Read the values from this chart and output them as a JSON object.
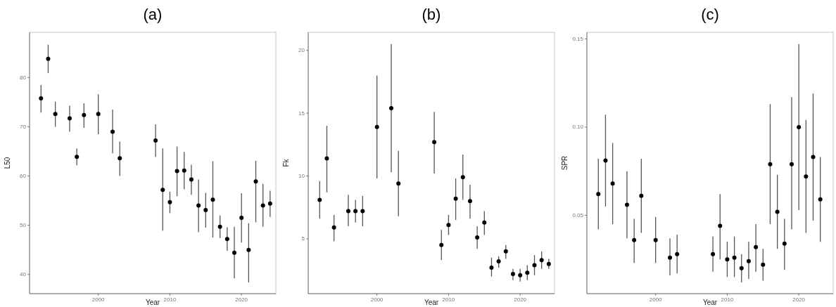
{
  "chart_data": [
    {
      "type": "scatter",
      "title": "(a)",
      "xlabel": "Year",
      "ylabel": "L50",
      "marker": "circle",
      "xlim": [
        1990.4,
        2024.8
      ],
      "xticks": [
        2000,
        2010,
        2020
      ],
      "ylim": [
        36.1,
        89.2
      ],
      "yticks": [
        40,
        50,
        60,
        70,
        80
      ],
      "x": [
        1992,
        1993,
        1994,
        1996,
        1997,
        1998,
        2000,
        2002,
        2003,
        2008,
        2009,
        2010,
        2011,
        2012,
        2013,
        2014,
        2015,
        2016,
        2017,
        2018,
        2019,
        2020,
        2021,
        2022,
        2023,
        2024
      ],
      "series": [
        {
          "color": "#000000",
          "values": [
            75.8,
            83.8,
            72.6,
            71.7,
            63.9,
            72.4,
            72.6,
            69.0,
            63.6,
            67.2,
            57.2,
            54.7,
            61.0,
            61.1,
            59.3,
            54.0,
            53.1,
            55.2,
            49.7,
            47.2,
            44.4,
            51.5,
            45.0,
            58.9,
            54.0,
            54.4
          ],
          "errors": [
            [
              72.9,
              78.5
            ],
            [
              80.9,
              86.7
            ],
            [
              70.0,
              75.1
            ],
            [
              69.0,
              74.3
            ],
            [
              62.2,
              65.6
            ],
            [
              69.8,
              74.8
            ],
            [
              68.5,
              76.6
            ],
            [
              64.6,
              73.5
            ],
            [
              60.0,
              67.0
            ],
            [
              63.9,
              70.5
            ],
            [
              48.9,
              65.6
            ],
            [
              52.5,
              56.8
            ],
            [
              55.9,
              66.0
            ],
            [
              57.3,
              64.9
            ],
            [
              56.2,
              62.3
            ],
            [
              48.6,
              59.3
            ],
            [
              49.5,
              56.6
            ],
            [
              47.5,
              63.0
            ],
            [
              47.4,
              52.0
            ],
            [
              44.8,
              49.6
            ],
            [
              39.2,
              49.7
            ],
            [
              46.5,
              56.5
            ],
            [
              38.4,
              50.4
            ],
            [
              50.6,
              63.1
            ],
            [
              49.7,
              58.4
            ],
            [
              51.7,
              57.0
            ]
          ]
        }
      ]
    },
    {
      "type": "scatter",
      "title": "(b)",
      "xlabel": "Year",
      "ylabel": "Fk",
      "marker": "circle",
      "xlim": [
        1990.4,
        2024.8
      ],
      "xticks": [
        2000,
        2010,
        2020
      ],
      "ylim": [
        0.63,
        21.44
      ],
      "yticks": [
        5,
        10,
        15,
        20
      ],
      "x": [
        1992,
        1993,
        1994,
        1996,
        1997,
        1998,
        2000,
        2002,
        2003,
        2008,
        2009,
        2010,
        2011,
        2012,
        2013,
        2014,
        2015,
        2016,
        2017,
        2018,
        2019,
        2020,
        2021,
        2022,
        2023,
        2024
      ],
      "series": [
        {
          "color": "#000000",
          "values": [
            8.1,
            11.4,
            5.9,
            7.2,
            7.2,
            7.2,
            13.9,
            15.4,
            9.4,
            12.7,
            4.5,
            6.1,
            8.2,
            9.9,
            8.0,
            5.1,
            6.3,
            2.7,
            3.2,
            4.0,
            2.2,
            2.1,
            2.3,
            2.9,
            3.3,
            3.0
          ],
          "errors": [
            [
              6.6,
              9.6
            ],
            [
              8.7,
              14.0
            ],
            [
              4.8,
              6.9
            ],
            [
              6.0,
              8.5
            ],
            [
              6.3,
              8.1
            ],
            [
              6.0,
              8.4
            ],
            [
              9.8,
              18.0
            ],
            [
              10.3,
              20.5
            ],
            [
              6.8,
              12.0
            ],
            [
              10.2,
              15.1
            ],
            [
              3.3,
              5.7
            ],
            [
              5.3,
              6.9
            ],
            [
              6.5,
              9.8
            ],
            [
              8.1,
              11.7
            ],
            [
              6.6,
              9.3
            ],
            [
              4.2,
              6.0
            ],
            [
              5.3,
              7.2
            ],
            [
              2.0,
              3.5
            ],
            [
              2.7,
              3.6
            ],
            [
              3.4,
              4.5
            ],
            [
              1.7,
              2.6
            ],
            [
              1.6,
              2.6
            ],
            [
              1.7,
              2.9
            ],
            [
              2.1,
              3.7
            ],
            [
              2.6,
              4.0
            ],
            [
              2.6,
              3.4
            ]
          ]
        }
      ]
    },
    {
      "type": "scatter",
      "title": "(c)",
      "xlabel": "Year",
      "ylabel": "SPR",
      "marker": "circle",
      "xlim": [
        1990.4,
        2024.8
      ],
      "xticks": [
        2000,
        2010,
        2020
      ],
      "ylim": [
        0.0056,
        0.1537
      ],
      "yticks": [
        {
          "value": 0.05,
          "label": "0.05"
        },
        {
          "value": 0.1,
          "label": "0.10"
        },
        {
          "value": 0.15,
          "label": "0.15"
        }
      ],
      "x": [
        1992,
        1993,
        1994,
        1996,
        1997,
        1998,
        2000,
        2002,
        2003,
        2008,
        2009,
        2010,
        2011,
        2012,
        2013,
        2014,
        2015,
        2016,
        2017,
        2018,
        2019,
        2020,
        2021,
        2022,
        2023
      ],
      "series": [
        {
          "color": "#000000",
          "values": [
            0.062,
            0.081,
            0.068,
            0.056,
            0.036,
            0.061,
            0.036,
            0.026,
            0.028,
            0.028,
            0.044,
            0.025,
            0.026,
            0.02,
            0.024,
            0.032,
            0.022,
            0.079,
            0.052,
            0.034,
            0.079,
            0.1,
            0.072,
            0.083,
            0.059
          ],
          "errors": [
            [
              0.042,
              0.082
            ],
            [
              0.055,
              0.107
            ],
            [
              0.045,
              0.091
            ],
            [
              0.037,
              0.075
            ],
            [
              0.023,
              0.048
            ],
            [
              0.04,
              0.082
            ],
            [
              0.023,
              0.049
            ],
            [
              0.016,
              0.037
            ],
            [
              0.017,
              0.039
            ],
            [
              0.018,
              0.038
            ],
            [
              0.025,
              0.062
            ],
            [
              0.015,
              0.035
            ],
            [
              0.015,
              0.038
            ],
            [
              0.012,
              0.028
            ],
            [
              0.014,
              0.035
            ],
            [
              0.018,
              0.045
            ],
            [
              0.013,
              0.031
            ],
            [
              0.045,
              0.113
            ],
            [
              0.031,
              0.073
            ],
            [
              0.019,
              0.048
            ],
            [
              0.042,
              0.117
            ],
            [
              0.053,
              0.147
            ],
            [
              0.04,
              0.104
            ],
            [
              0.047,
              0.119
            ],
            [
              0.035,
              0.083
            ]
          ]
        }
      ]
    }
  ]
}
